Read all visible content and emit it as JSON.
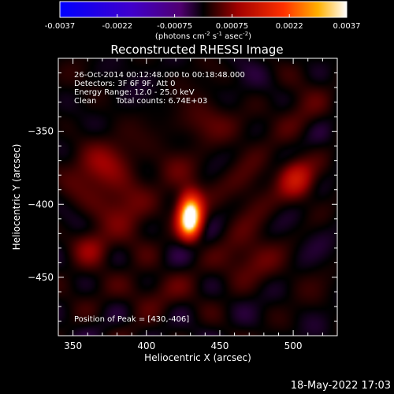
{
  "chart_data": {
    "type": "heatmap",
    "title": "Reconstructed RHESSI Image",
    "xlabel": "Heliocentric X (arcsec)",
    "ylabel": "Heliocentric Y (arcsec)",
    "xlim": [
      340,
      530
    ],
    "ylim": [
      -490,
      -300
    ],
    "x_ticks": [
      350,
      400,
      450,
      500
    ],
    "y_ticks": [
      -350,
      -400,
      -450
    ],
    "colorbar": {
      "range": [
        -0.0037,
        0.0037
      ],
      "ticks": [
        "-0.0037",
        "-0.0022",
        "-0.00075",
        "0.00075",
        "0.0022",
        "0.0037"
      ],
      "unit_base": "(photons cm",
      "unit_exp1": "-2",
      "unit_mid1": " s",
      "unit_exp2": "-1",
      "unit_mid2": " asec",
      "unit_exp3": "-2",
      "unit_end": ")"
    },
    "annotations": {
      "time": "26-Oct-2014 00:12:48.000 to 00:18:48.000",
      "detectors": "Detectors: 3F 6F 9F, Att 0",
      "energy": "Energy Range: 12.0 - 25.0 keV",
      "method": "Clean",
      "counts": "Total counts: 6.74E+03",
      "peak": "Position of Peak = [430,-406]"
    },
    "peak": {
      "x": 430,
      "y": -406
    },
    "sources": [
      {
        "x": 430,
        "y": -406,
        "amplitude": 1.0,
        "sigma_x": 5.5,
        "sigma_y": 9
      },
      {
        "x": 429,
        "y": -415,
        "amplitude": 0.45,
        "sigma_x": 5,
        "sigma_y": 7
      },
      {
        "x": 502,
        "y": -382,
        "amplitude": 0.32,
        "sigma_x": 8,
        "sigma_y": 9
      },
      {
        "x": 362,
        "y": -430,
        "amplitude": 0.22,
        "sigma_x": 9,
        "sigma_y": 9
      },
      {
        "x": 368,
        "y": -372,
        "amplitude": 0.2,
        "sigma_x": 14,
        "sigma_y": 12
      },
      {
        "x": 385,
        "y": -400,
        "amplitude": 0.18,
        "sigma_x": 14,
        "sigma_y": 14
      },
      {
        "x": 440,
        "y": -345,
        "amplitude": 0.14,
        "sigma_x": 14,
        "sigma_y": 10
      },
      {
        "x": 470,
        "y": -440,
        "amplitude": 0.14,
        "sigma_x": 16,
        "sigma_y": 12
      },
      {
        "x": 470,
        "y": -390,
        "amplitude": 0.13,
        "sigma_x": 12,
        "sigma_y": 14
      },
      {
        "x": 400,
        "y": -460,
        "amplitude": 0.12,
        "sigma_x": 16,
        "sigma_y": 10
      },
      {
        "x": 505,
        "y": -340,
        "amplitude": 0.1,
        "sigma_x": 12,
        "sigma_y": 12
      },
      {
        "x": 420,
        "y": -375,
        "amplitude": 0.1,
        "sigma_x": 10,
        "sigma_y": 10
      }
    ],
    "grid": false
  },
  "footer": {
    "date": "18-May-2022 17:03"
  },
  "colors": {
    "background": "#000000",
    "axes": "#ffffff"
  }
}
